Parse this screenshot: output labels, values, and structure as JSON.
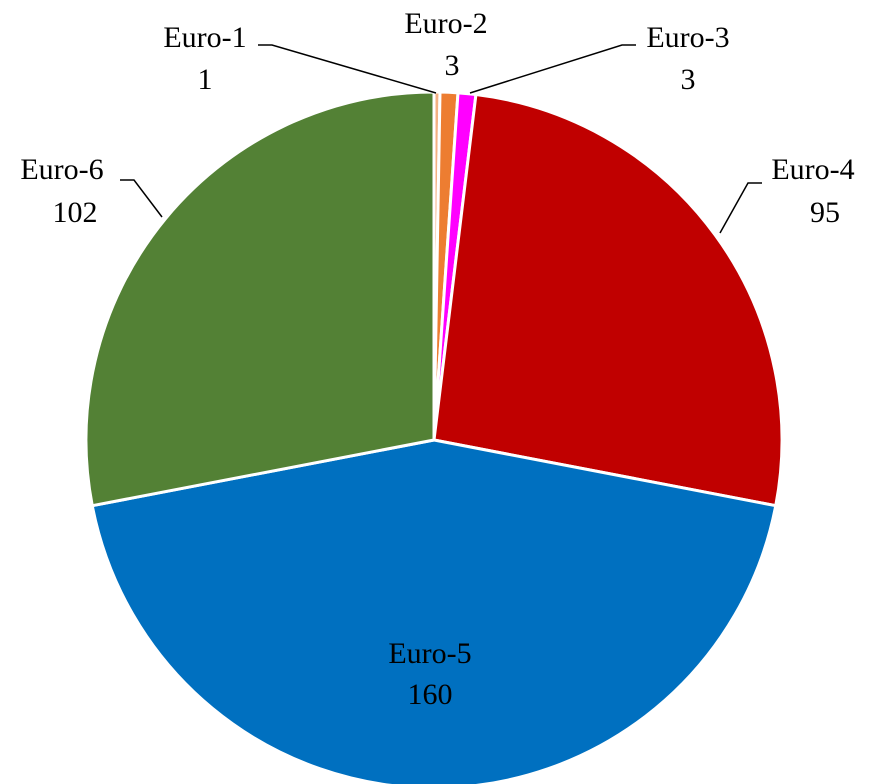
{
  "chart_data": {
    "type": "pie",
    "categories": [
      "Euro-1",
      "Euro-2",
      "Euro-3",
      "Euro-4",
      "Euro-5",
      "Euro-6"
    ],
    "values": [
      1,
      3,
      3,
      95,
      160,
      102
    ],
    "colors": [
      "#f4b183",
      "#ed7d31",
      "#ff00ff",
      "#c00000",
      "#0070c0",
      "#538135"
    ]
  }
}
